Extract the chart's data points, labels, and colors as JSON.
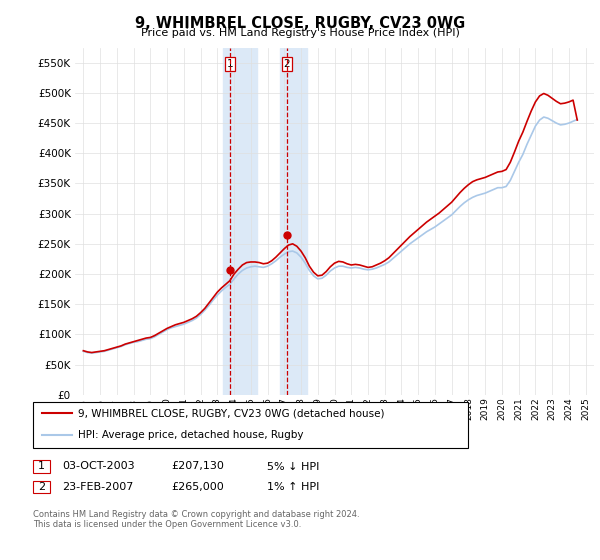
{
  "title": "9, WHIMBREL CLOSE, RUGBY, CV23 0WG",
  "subtitle": "Price paid vs. HM Land Registry's House Price Index (HPI)",
  "background_color": "#ffffff",
  "plot_bg_color": "#ffffff",
  "grid_color": "#e0e0e0",
  "line1_color": "#cc0000",
  "line2_color": "#aac8e8",
  "highlight_color": "#dce9f7",
  "marker_color": "#cc0000",
  "purchase1": {
    "date_x": 2003.75,
    "price": 207130,
    "label": "1"
  },
  "purchase2": {
    "date_x": 2007.15,
    "price": 265000,
    "label": "2"
  },
  "legend_line1": "9, WHIMBREL CLOSE, RUGBY, CV23 0WG (detached house)",
  "legend_line2": "HPI: Average price, detached house, Rugby",
  "table_row1": [
    "1",
    "03-OCT-2003",
    "£207,130",
    "5% ↓ HPI"
  ],
  "table_row2": [
    "2",
    "23-FEB-2007",
    "£265,000",
    "1% ↑ HPI"
  ],
  "footer": "Contains HM Land Registry data © Crown copyright and database right 2024.\nThis data is licensed under the Open Government Licence v3.0.",
  "ylim": [
    0,
    575000
  ],
  "xlim": [
    1994.5,
    2025.5
  ],
  "yticks": [
    0,
    50000,
    100000,
    150000,
    200000,
    250000,
    300000,
    350000,
    400000,
    450000,
    500000,
    550000
  ],
  "xticks": [
    1995,
    1996,
    1997,
    1998,
    1999,
    2000,
    2001,
    2002,
    2003,
    2004,
    2005,
    2006,
    2007,
    2008,
    2009,
    2010,
    2011,
    2012,
    2013,
    2014,
    2015,
    2016,
    2017,
    2018,
    2019,
    2020,
    2021,
    2022,
    2023,
    2024,
    2025
  ],
  "hpi_years": [
    1995.0,
    1995.25,
    1995.5,
    1995.75,
    1996.0,
    1996.25,
    1996.5,
    1996.75,
    1997.0,
    1997.25,
    1997.5,
    1997.75,
    1998.0,
    1998.25,
    1998.5,
    1998.75,
    1999.0,
    1999.25,
    1999.5,
    1999.75,
    2000.0,
    2000.25,
    2000.5,
    2000.75,
    2001.0,
    2001.25,
    2001.5,
    2001.75,
    2002.0,
    2002.25,
    2002.5,
    2002.75,
    2003.0,
    2003.25,
    2003.5,
    2003.75,
    2004.0,
    2004.25,
    2004.5,
    2004.75,
    2005.0,
    2005.25,
    2005.5,
    2005.75,
    2006.0,
    2006.25,
    2006.5,
    2006.75,
    2007.0,
    2007.25,
    2007.5,
    2007.75,
    2008.0,
    2008.25,
    2008.5,
    2008.75,
    2009.0,
    2009.25,
    2009.5,
    2009.75,
    2010.0,
    2010.25,
    2010.5,
    2010.75,
    2011.0,
    2011.25,
    2011.5,
    2011.75,
    2012.0,
    2012.25,
    2012.5,
    2012.75,
    2013.0,
    2013.25,
    2013.5,
    2013.75,
    2014.0,
    2014.25,
    2014.5,
    2014.75,
    2015.0,
    2015.25,
    2015.5,
    2015.75,
    2016.0,
    2016.25,
    2016.5,
    2016.75,
    2017.0,
    2017.25,
    2017.5,
    2017.75,
    2018.0,
    2018.25,
    2018.5,
    2018.75,
    2019.0,
    2019.25,
    2019.5,
    2019.75,
    2020.0,
    2020.25,
    2020.5,
    2020.75,
    2021.0,
    2021.25,
    2021.5,
    2021.75,
    2022.0,
    2022.25,
    2022.5,
    2022.75,
    2023.0,
    2023.25,
    2023.5,
    2023.75,
    2024.0,
    2024.25,
    2024.5
  ],
  "hpi_prices": [
    72000,
    70000,
    69000,
    70000,
    71000,
    72000,
    74000,
    76000,
    78000,
    80000,
    83000,
    85000,
    87000,
    88000,
    90000,
    92000,
    93000,
    96000,
    100000,
    104000,
    108000,
    111000,
    113000,
    115000,
    117000,
    120000,
    123000,
    127000,
    133000,
    140000,
    148000,
    157000,
    165000,
    172000,
    178000,
    183000,
    192000,
    200000,
    206000,
    210000,
    212000,
    213000,
    212000,
    211000,
    213000,
    217000,
    222000,
    228000,
    233000,
    237000,
    238000,
    235000,
    228000,
    218000,
    206000,
    197000,
    192000,
    193000,
    198000,
    205000,
    210000,
    213000,
    213000,
    211000,
    210000,
    211000,
    210000,
    208000,
    207000,
    208000,
    210000,
    213000,
    216000,
    220000,
    226000,
    232000,
    238000,
    244000,
    250000,
    255000,
    260000,
    265000,
    270000,
    274000,
    278000,
    283000,
    288000,
    293000,
    298000,
    305000,
    312000,
    318000,
    323000,
    327000,
    330000,
    332000,
    334000,
    337000,
    340000,
    343000,
    343000,
    345000,
    355000,
    370000,
    385000,
    398000,
    415000,
    430000,
    445000,
    455000,
    460000,
    458000,
    454000,
    450000,
    447000,
    448000,
    450000,
    453000,
    456000
  ],
  "pp_years": [
    1995.0,
    1995.25,
    1995.5,
    1995.75,
    1996.0,
    1996.25,
    1996.5,
    1996.75,
    1997.0,
    1997.25,
    1997.5,
    1997.75,
    1998.0,
    1998.25,
    1998.5,
    1998.75,
    1999.0,
    1999.25,
    1999.5,
    1999.75,
    2000.0,
    2000.25,
    2000.5,
    2000.75,
    2001.0,
    2001.25,
    2001.5,
    2001.75,
    2002.0,
    2002.25,
    2002.5,
    2002.75,
    2003.0,
    2003.25,
    2003.5,
    2003.75,
    2004.0,
    2004.25,
    2004.5,
    2004.75,
    2005.0,
    2005.25,
    2005.5,
    2005.75,
    2006.0,
    2006.25,
    2006.5,
    2006.75,
    2007.0,
    2007.25,
    2007.5,
    2007.75,
    2008.0,
    2008.25,
    2008.5,
    2008.75,
    2009.0,
    2009.25,
    2009.5,
    2009.75,
    2010.0,
    2010.25,
    2010.5,
    2010.75,
    2011.0,
    2011.25,
    2011.5,
    2011.75,
    2012.0,
    2012.25,
    2012.5,
    2012.75,
    2013.0,
    2013.25,
    2013.5,
    2013.75,
    2014.0,
    2014.25,
    2014.5,
    2014.75,
    2015.0,
    2015.25,
    2015.5,
    2015.75,
    2016.0,
    2016.25,
    2016.5,
    2016.75,
    2017.0,
    2017.25,
    2017.5,
    2017.75,
    2018.0,
    2018.25,
    2018.5,
    2018.75,
    2019.0,
    2019.25,
    2019.5,
    2019.75,
    2020.0,
    2020.25,
    2020.5,
    2020.75,
    2021.0,
    2021.25,
    2021.5,
    2021.75,
    2022.0,
    2022.25,
    2022.5,
    2022.75,
    2023.0,
    2023.25,
    2023.5,
    2023.75,
    2024.0,
    2024.25,
    2024.5
  ],
  "pp_prices": [
    73000,
    71000,
    70000,
    71000,
    72000,
    73000,
    75000,
    77000,
    79000,
    81000,
    84000,
    86000,
    88000,
    90000,
    92000,
    94000,
    95000,
    98000,
    102000,
    106000,
    110000,
    113000,
    116000,
    118000,
    120000,
    123000,
    126000,
    130000,
    136000,
    143000,
    152000,
    161000,
    170000,
    177000,
    183000,
    189000,
    200000,
    208000,
    215000,
    219000,
    220000,
    220000,
    219000,
    217000,
    218000,
    222000,
    228000,
    235000,
    242000,
    248000,
    250000,
    246000,
    238000,
    227000,
    213000,
    203000,
    197000,
    198000,
    204000,
    212000,
    218000,
    221000,
    220000,
    217000,
    215000,
    216000,
    215000,
    213000,
    211000,
    212000,
    215000,
    218000,
    222000,
    227000,
    234000,
    241000,
    248000,
    255000,
    262000,
    268000,
    274000,
    280000,
    286000,
    291000,
    296000,
    301000,
    307000,
    313000,
    319000,
    327000,
    335000,
    342000,
    348000,
    353000,
    356000,
    358000,
    360000,
    363000,
    366000,
    369000,
    370000,
    373000,
    385000,
    402000,
    420000,
    435000,
    453000,
    470000,
    485000,
    495000,
    499000,
    496000,
    491000,
    486000,
    482000,
    483000,
    485000,
    488000,
    455000
  ]
}
